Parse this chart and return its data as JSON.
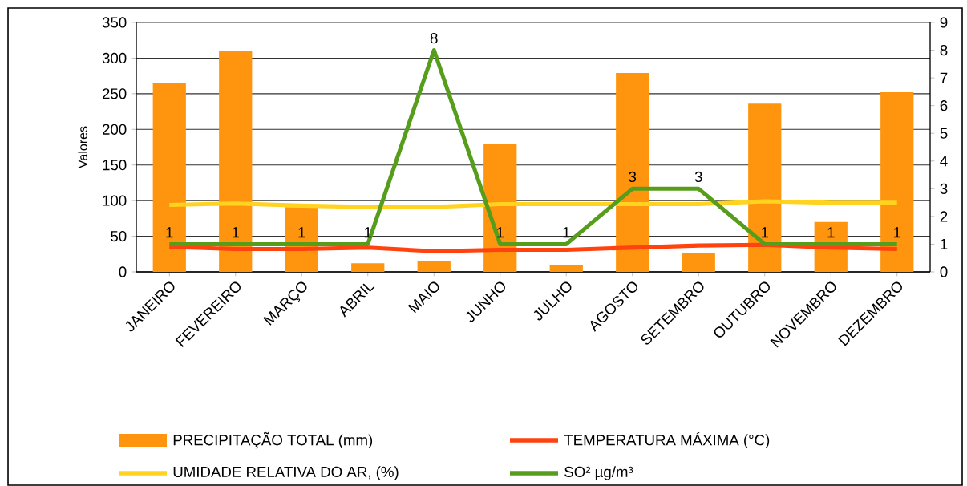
{
  "chart_data": {
    "type": "bar",
    "ylabel": "Valores",
    "categories": [
      "JANEIRO",
      "FEVEREIRO",
      "MARÇO",
      "ABRIL",
      "MAIO",
      "JUNHO",
      "JULHO",
      "AGOSTO",
      "SETEMBRO",
      "OUTUBRO",
      "NOVEMBRO",
      "DEZEMBRO"
    ],
    "series": [
      {
        "name": "PRECIPITAÇÃO TOTAL (mm)",
        "color": "#ff950e",
        "values": [
          265,
          310,
          91,
          12,
          15,
          180,
          10,
          279,
          26,
          236,
          70,
          252
        ]
      },
      {
        "name": "TEMPERATURA  MÁXIMA (°C)",
        "type": "line",
        "color": "#ff420e",
        "values": [
          35,
          32,
          32,
          34,
          29,
          31,
          31,
          34,
          37,
          38,
          34,
          32
        ]
      },
      {
        "name": "UMIDADE RELATIVA DO AR, (%)",
        "type": "line",
        "color": "#ffd320",
        "values": [
          94,
          96,
          93,
          91,
          91,
          95,
          95,
          95,
          95,
          99,
          97,
          97
        ]
      },
      {
        "name": "SO² µg/m³",
        "type": "line",
        "axis": "y2",
        "color": "#579d1c",
        "data_labels": true,
        "values": [
          1,
          1,
          1,
          1,
          8,
          1,
          1,
          3,
          3,
          1,
          1,
          1
        ]
      }
    ],
    "ylim": [
      0,
      350
    ],
    "yticks": [
      0,
      50,
      100,
      150,
      200,
      250,
      300,
      350
    ],
    "y2lim": [
      0,
      9
    ],
    "y2ticks": [
      0,
      1,
      2,
      3,
      4,
      5,
      6,
      7,
      8,
      9
    ],
    "grid": "y",
    "legend": "bottom"
  }
}
